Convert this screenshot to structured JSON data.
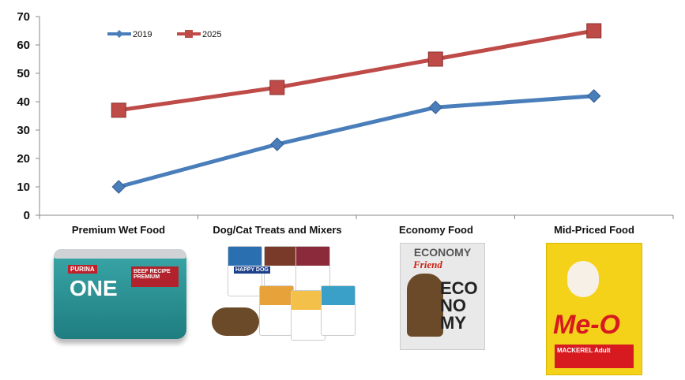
{
  "chart_data": {
    "type": "line",
    "title": "",
    "xlabel": "",
    "ylabel": "",
    "categories": [
      "Premium Wet Food",
      "Dog/Cat Treats and Mixers",
      "Economy Food",
      "Mid-Priced Food"
    ],
    "yticks": [
      "0",
      "10",
      "20",
      "30",
      "40",
      "50",
      "60",
      "70"
    ],
    "ylim": [
      0,
      70
    ],
    "grid": false,
    "legend_position": "top-left",
    "series": [
      {
        "name": "2019",
        "values": [
          10,
          25,
          38,
          42
        ],
        "color": "#4a7ebb",
        "marker": "diamond"
      },
      {
        "name": "2025",
        "values": [
          37,
          45,
          55,
          65
        ],
        "color": "#be4b48",
        "marker": "square"
      }
    ]
  },
  "products": {
    "wet": {
      "brand": "PURINA",
      "name": "ONE",
      "label": "BEEF RECIPE PREMIUM"
    },
    "treats": {
      "brand": "HAPPY DOG"
    },
    "economy": {
      "title": "ECONOMY",
      "brand": "Friend",
      "big": "ECO NO MY"
    },
    "mid": {
      "brand": "Me-O",
      "label": "MACKEREL Adult"
    }
  }
}
